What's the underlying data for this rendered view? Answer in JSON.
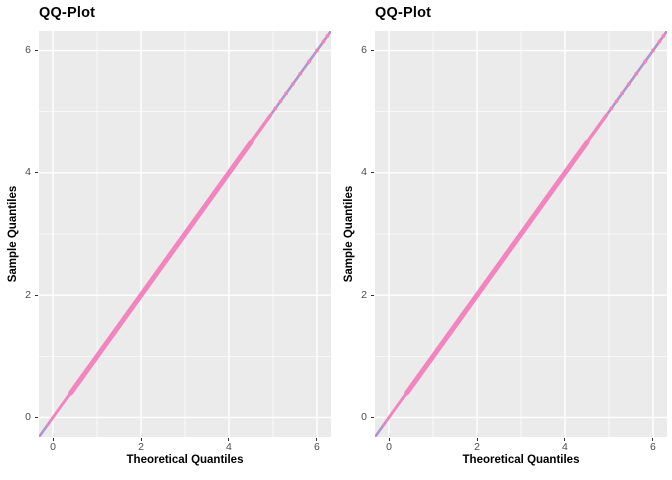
{
  "figure": {
    "background": "#FFFFFF"
  },
  "chart_data": [
    {
      "type": "scatter",
      "title": "QQ-Plot",
      "xlabel": "Theoretical Quantiles",
      "ylabel": "Sample Quantiles",
      "xlim": [
        -0.32,
        6.32
      ],
      "ylim": [
        -0.32,
        6.32
      ],
      "xticks": [
        0,
        2,
        4,
        6
      ],
      "yticks": [
        0,
        2,
        4,
        6
      ],
      "minor_xticks": [
        1,
        3,
        5
      ],
      "minor_yticks": [
        1,
        3,
        5
      ],
      "grid": true,
      "legend_position": "none",
      "panel_bg": "#EBEBEB",
      "grid_color": "#FFFFFF",
      "tick_label_color": "#4D4D4D",
      "tick_mark_color": "#333333",
      "ref_line": {
        "x1": -0.32,
        "y1": -0.32,
        "x2": 6.32,
        "y2": 6.32,
        "color": "#B094CD",
        "width": 2.6
      },
      "points_color": "#F285BD",
      "dense_band_on_identity": [
        {
          "from": -0.06,
          "to": 0.4,
          "width": 2.8
        },
        {
          "from": 0.4,
          "to": 4.5,
          "width": 5
        },
        {
          "from": 4.5,
          "to": 4.95,
          "width": 3.4
        }
      ],
      "sparse_points_on_identity": [
        5.05,
        5.17,
        5.3,
        5.45,
        5.62,
        5.82,
        6.0,
        6.15,
        6.24
      ],
      "low_points_on_identity": [
        -0.12
      ],
      "point_radius": 1.9
    },
    {
      "type": "scatter",
      "title": "QQ-Plot",
      "xlabel": "Theoretical Quantiles",
      "ylabel": "Sample Quantiles",
      "xlim": [
        -0.32,
        6.32
      ],
      "ylim": [
        -0.32,
        6.32
      ],
      "xticks": [
        0,
        2,
        4,
        6
      ],
      "yticks": [
        0,
        2,
        4,
        6
      ],
      "minor_xticks": [
        1,
        3,
        5
      ],
      "minor_yticks": [
        1,
        3,
        5
      ],
      "grid": true,
      "legend_position": "none",
      "panel_bg": "#EBEBEB",
      "grid_color": "#FFFFFF",
      "tick_label_color": "#4D4D4D",
      "tick_mark_color": "#333333",
      "ref_line": {
        "x1": -0.32,
        "y1": -0.32,
        "x2": 6.32,
        "y2": 6.32,
        "color": "#B094CD",
        "width": 2.6
      },
      "points_color": "#F285BD",
      "dense_band_on_identity": [
        {
          "from": -0.06,
          "to": 0.4,
          "width": 2.8
        },
        {
          "from": 0.4,
          "to": 4.5,
          "width": 5
        },
        {
          "from": 4.5,
          "to": 4.95,
          "width": 3.4
        }
      ],
      "sparse_points_on_identity": [
        5.05,
        5.17,
        5.3,
        5.45,
        5.62,
        5.82,
        6.0,
        6.15,
        6.24
      ],
      "low_points_on_identity": [
        -0.12
      ],
      "point_radius": 1.9
    }
  ]
}
